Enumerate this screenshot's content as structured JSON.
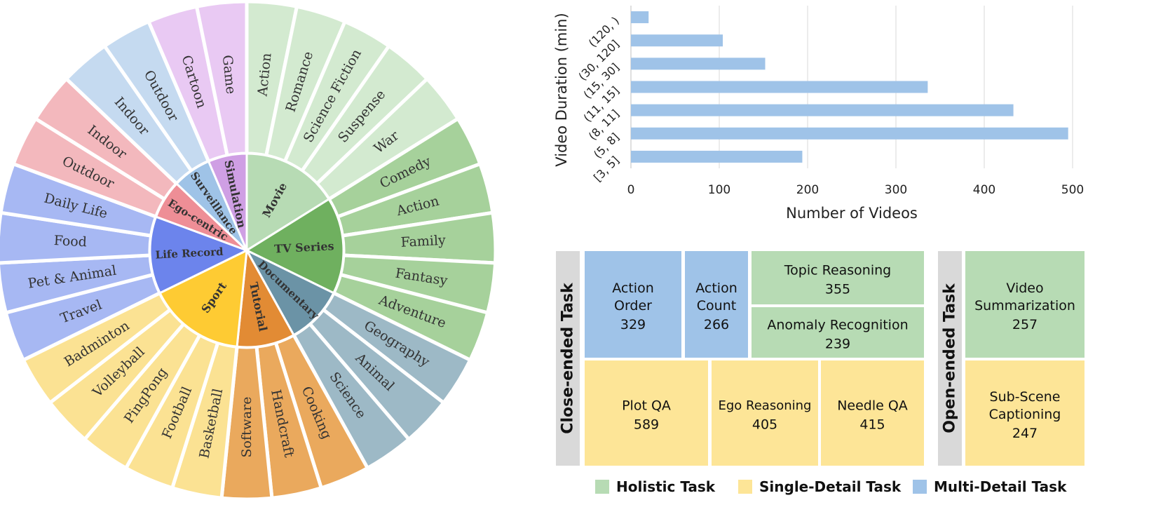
{
  "chart_data": [
    {
      "type": "sunburst",
      "title": "",
      "inner_ring": [
        {
          "name": "Movie",
          "color": "#b7dbb4"
        },
        {
          "name": "TV Series",
          "color": "#6fb05f"
        },
        {
          "name": "Documentary",
          "color": "#6b93a6"
        },
        {
          "name": "Tutorial",
          "color": "#e28b34"
        },
        {
          "name": "Sport",
          "color": "#fecb33"
        },
        {
          "name": "Life Record",
          "color": "#6c84ec"
        },
        {
          "name": "Ego-centric",
          "color": "#ee8e96"
        },
        {
          "name": "Surveillance",
          "color": "#9fc3e7"
        },
        {
          "name": "Simulation",
          "color": "#cf9fe4"
        }
      ],
      "outer_ring": [
        {
          "name": "Action",
          "parent": "Movie",
          "color": "#d3ead0"
        },
        {
          "name": "Romance",
          "parent": "Movie",
          "color": "#d3ead0"
        },
        {
          "name": "Science Fiction",
          "parent": "Movie",
          "color": "#d3ead0"
        },
        {
          "name": "Suspense",
          "parent": "Movie",
          "color": "#d3ead0"
        },
        {
          "name": "War",
          "parent": "Movie",
          "color": "#d3ead0"
        },
        {
          "name": "Comedy",
          "parent": "TV Series",
          "color": "#a6d19b"
        },
        {
          "name": "Action",
          "parent": "TV Series",
          "color": "#a6d19b"
        },
        {
          "name": "Family",
          "parent": "TV Series",
          "color": "#a6d19b"
        },
        {
          "name": "Fantasy",
          "parent": "TV Series",
          "color": "#a6d19b"
        },
        {
          "name": "Adventure",
          "parent": "TV Series",
          "color": "#a6d19b"
        },
        {
          "name": "Geography",
          "parent": "Documentary",
          "color": "#9db9c6"
        },
        {
          "name": "Animal",
          "parent": "Documentary",
          "color": "#9db9c6"
        },
        {
          "name": "Science",
          "parent": "Documentary",
          "color": "#9db9c6"
        },
        {
          "name": "Cooking",
          "parent": "Tutorial",
          "color": "#eaa95d"
        },
        {
          "name": "Handcraft",
          "parent": "Tutorial",
          "color": "#eaa95d"
        },
        {
          "name": "Software",
          "parent": "Tutorial",
          "color": "#eaa95d"
        },
        {
          "name": "Basketball",
          "parent": "Sport",
          "color": "#fbe293"
        },
        {
          "name": "Football",
          "parent": "Sport",
          "color": "#fbe293"
        },
        {
          "name": "PingPong",
          "parent": "Sport",
          "color": "#fbe293"
        },
        {
          "name": "Volleyball",
          "parent": "Sport",
          "color": "#fbe293"
        },
        {
          "name": "Badminton",
          "parent": "Sport",
          "color": "#fbe293"
        },
        {
          "name": "Travel",
          "parent": "Life Record",
          "color": "#a7b8f3"
        },
        {
          "name": "Pet & Animal",
          "parent": "Life Record",
          "color": "#a7b8f3"
        },
        {
          "name": "Food",
          "parent": "Life Record",
          "color": "#a7b8f3"
        },
        {
          "name": "Daily Life",
          "parent": "Life Record",
          "color": "#a7b8f3"
        },
        {
          "name": "Outdoor",
          "parent": "Ego-centric",
          "color": "#f3b8bd"
        },
        {
          "name": "Indoor",
          "parent": "Ego-centric",
          "color": "#f3b8bd"
        },
        {
          "name": "Indoor",
          "parent": "Surveillance",
          "color": "#c5daf0"
        },
        {
          "name": "Outdoor",
          "parent": "Surveillance",
          "color": "#c5daf0"
        },
        {
          "name": "Cartoon",
          "parent": "Simulation",
          "color": "#e9c9f3"
        },
        {
          "name": "Game",
          "parent": "Simulation",
          "color": "#e9c9f3"
        }
      ]
    },
    {
      "type": "bar",
      "orientation": "horizontal",
      "title": "",
      "categories": [
        "(120, )",
        "(30, 120]",
        "(15, 30]",
        "(11, 15]",
        "(8, 11]",
        "(5, 8]",
        "[3, 5]"
      ],
      "values": [
        20,
        104,
        152,
        336,
        433,
        495,
        194
      ],
      "xlabel": "Number of Videos",
      "ylabel": "Video Duration (min)",
      "xlim": [
        0,
        500
      ],
      "xticks": [
        "0",
        "100",
        "200",
        "300",
        "400",
        "500"
      ],
      "color": "#9fc3e8",
      "grid": "vertical"
    },
    {
      "type": "treemap",
      "groups": [
        {
          "label": "Close-ended Task",
          "cells": [
            {
              "lines": [
                "Action",
                "Order"
              ],
              "value": "329",
              "category": "multi"
            },
            {
              "lines": [
                "Action",
                "Count"
              ],
              "value": "266",
              "category": "multi"
            },
            {
              "lines": [
                "Topic Reasoning"
              ],
              "value": "355",
              "category": "holistic"
            },
            {
              "lines": [
                "Anomaly Recognition"
              ],
              "value": "239",
              "category": "holistic"
            },
            {
              "lines": [
                "Plot QA"
              ],
              "value": "589",
              "category": "single"
            },
            {
              "lines": [
                "Ego Reasoning"
              ],
              "value": "405",
              "category": "single"
            },
            {
              "lines": [
                "Needle QA"
              ],
              "value": "415",
              "category": "single"
            }
          ]
        },
        {
          "label": "Open-ended Task",
          "cells": [
            {
              "lines": [
                "Video",
                "Summarization"
              ],
              "value": "257",
              "category": "holistic"
            },
            {
              "lines": [
                "Sub-Scene",
                "Captioning"
              ],
              "value": "247",
              "category": "single"
            }
          ]
        }
      ],
      "legend": [
        {
          "label": "Holistic Task",
          "category": "holistic"
        },
        {
          "label": "Single-Detail Task",
          "category": "single"
        },
        {
          "label": "Multi-Detail Task",
          "category": "multi"
        }
      ],
      "colors": {
        "holistic": "#b7dbb4",
        "single": "#fde597",
        "multi": "#9fc3e8",
        "group_label_bg": "#d9d9d9"
      }
    }
  ]
}
